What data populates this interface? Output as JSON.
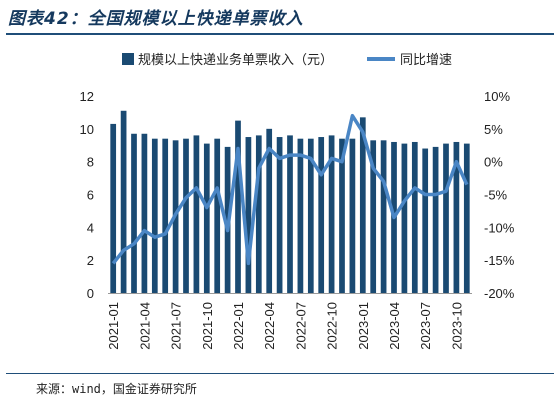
{
  "title": "图表42：全国规模以上快递单票收入",
  "source": "来源：wind，国金证券研究所",
  "colors": {
    "bar": "#1a4a72",
    "line": "#4a86c5",
    "title": "#15395e"
  },
  "chart_data": {
    "type": "bar",
    "title": "",
    "legend": {
      "position": "top",
      "entries": [
        "规模以上快递业务单票收入（元）",
        "同比增速"
      ]
    },
    "categories": [
      "2021-01",
      "2021-02",
      "2021-03",
      "2021-04",
      "2021-05",
      "2021-06",
      "2021-07",
      "2021-08",
      "2021-09",
      "2021-10",
      "2021-11",
      "2021-12",
      "2022-01",
      "2022-02",
      "2022-03",
      "2022-04",
      "2022-05",
      "2022-06",
      "2022-07",
      "2022-08",
      "2022-09",
      "2022-10",
      "2022-11",
      "2022-12",
      "2023-01",
      "2023-02",
      "2023-03",
      "2023-04",
      "2023-05",
      "2023-06",
      "2023-07",
      "2023-08",
      "2023-09",
      "2023-10",
      "2023-11"
    ],
    "x_tick_labels": [
      "2021-01",
      "2021-04",
      "2021-07",
      "2021-10",
      "2022-01",
      "2022-04",
      "2022-07",
      "2022-10",
      "2023-01",
      "2023-04",
      "2023-07",
      "2023-10"
    ],
    "series": [
      {
        "name": "规模以上快递业务单票收入（元）",
        "axis": "left",
        "kind": "bar",
        "values": [
          10.3,
          11.1,
          9.7,
          9.7,
          9.4,
          9.4,
          9.3,
          9.4,
          9.6,
          9.1,
          9.4,
          8.9,
          10.5,
          9.5,
          9.6,
          10.0,
          9.5,
          9.6,
          9.4,
          9.4,
          9.5,
          9.6,
          9.4,
          9.4,
          10.7,
          9.3,
          9.3,
          9.2,
          9.1,
          9.2,
          8.8,
          8.9,
          9.1,
          9.2,
          9.1
        ]
      },
      {
        "name": "同比增速",
        "axis": "right",
        "kind": "line",
        "values": [
          -15.5,
          -13.5,
          -12.5,
          -10.5,
          -11.5,
          -11.0,
          -8.0,
          -5.5,
          -4.0,
          -7.0,
          -4.0,
          -10.5,
          2.0,
          -15.5,
          -1.0,
          2.0,
          0.5,
          1.0,
          1.0,
          0.5,
          -2.0,
          0.5,
          0.0,
          7.0,
          4.5,
          -1.0,
          -3.0,
          -8.5,
          -6.0,
          -4.0,
          -5.0,
          -5.0,
          -4.5,
          0.0,
          -3.5
        ]
      }
    ],
    "y_left": {
      "min": 0,
      "max": 12,
      "ticks": [
        "0",
        "2",
        "4",
        "6",
        "8",
        "10",
        "12"
      ]
    },
    "y_right": {
      "min": -20,
      "max": 10,
      "ticks": [
        "-20%",
        "-15%",
        "-10%",
        "-5%",
        "0%",
        "5%",
        "10%"
      ]
    },
    "grid": false
  }
}
